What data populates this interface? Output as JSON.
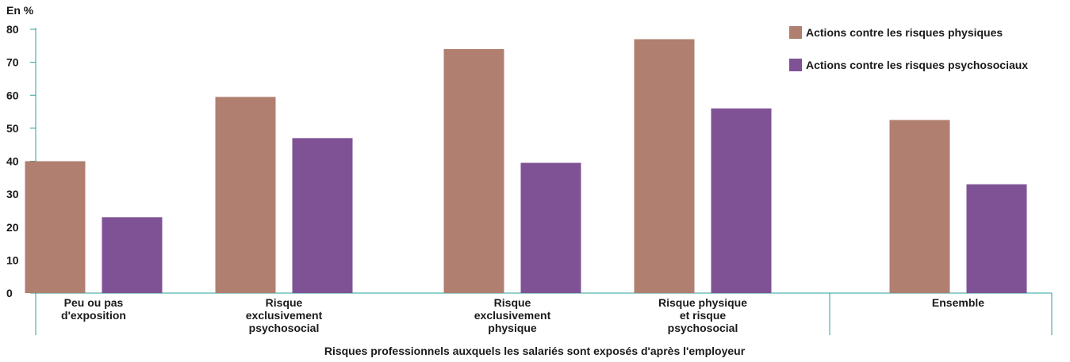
{
  "chart_data": {
    "type": "bar",
    "unit_label": "En %",
    "xlabel": "Risques professionnels auxquels les salariés sont exposés d'après l'employeur",
    "ylabel": "",
    "ylim": [
      0,
      80
    ],
    "yticks": [
      0,
      10,
      20,
      30,
      40,
      50,
      60,
      70,
      80
    ],
    "grid": false,
    "legend_position": "top-right",
    "categories": [
      [
        "Peu ou pas",
        "d'exposition"
      ],
      [
        "Risque",
        "exclusivement",
        "psychosocial"
      ],
      [
        "Risque",
        "exclusivement",
        "physique"
      ],
      [
        "Risque physique",
        "et risque",
        "psychosocial"
      ],
      [
        "Ensemble"
      ]
    ],
    "series": [
      {
        "name": "Actions contre les risques physiques",
        "color": "#b07f70",
        "values": [
          40,
          59.5,
          74,
          77,
          52.5
        ]
      },
      {
        "name": "Actions contre les risques psychosociaux",
        "color": "#7f5295",
        "values": [
          23,
          47,
          39.5,
          56,
          33
        ]
      }
    ],
    "axis_color": "#2aa198"
  }
}
